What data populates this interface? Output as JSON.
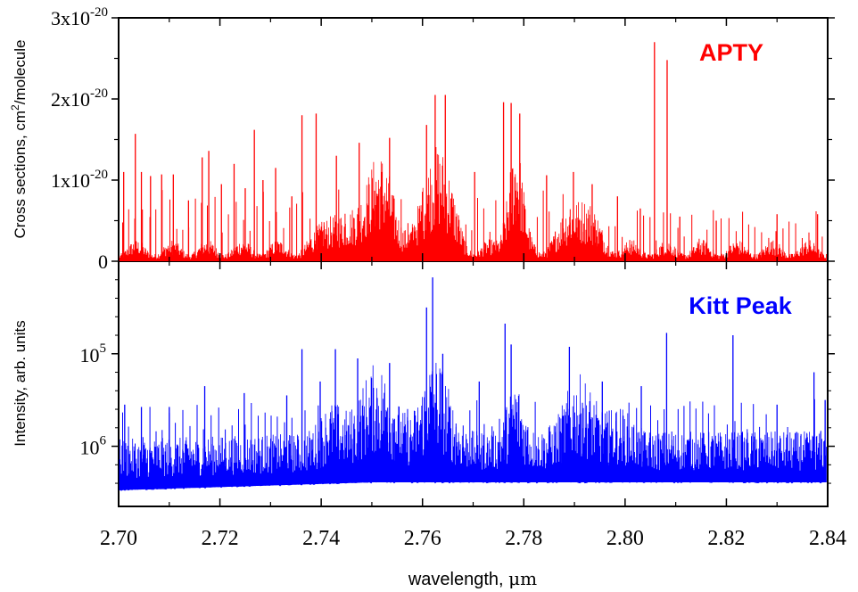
{
  "chart_data": [
    {
      "type": "line",
      "panel": "top",
      "ylabel": "Cross sections, cm",
      "ylabel_sup": "2",
      "ylabel_tail": "/molecule",
      "series": [
        {
          "name": "APTY",
          "color": "#ff0000",
          "baseline_peaks": [
            {
              "x": 2.701,
              "y": 1.1e-20
            },
            {
              "x": 2.7033,
              "y": 1.57e-20
            },
            {
              "x": 2.7045,
              "y": 1.1e-20
            },
            {
              "x": 2.7063,
              "y": 1.05e-20
            },
            {
              "x": 2.7085,
              "y": 1.07e-20
            },
            {
              "x": 2.7108,
              "y": 1.07e-20
            },
            {
              "x": 2.7138,
              "y": 7.5e-21
            },
            {
              "x": 2.7165,
              "y": 1.28e-20
            },
            {
              "x": 2.7178,
              "y": 1.36e-20
            },
            {
              "x": 2.7203,
              "y": 9.5e-21
            },
            {
              "x": 2.7228,
              "y": 1.2e-20
            },
            {
              "x": 2.725,
              "y": 9e-21
            },
            {
              "x": 2.7268,
              "y": 1.62e-20
            },
            {
              "x": 2.7285,
              "y": 1e-20
            },
            {
              "x": 2.731,
              "y": 1.15e-20
            },
            {
              "x": 2.7342,
              "y": 8e-21
            },
            {
              "x": 2.7362,
              "y": 1.8e-20
            },
            {
              "x": 2.739,
              "y": 1.82e-20
            },
            {
              "x": 2.743,
              "y": 1.3e-20
            },
            {
              "x": 2.7475,
              "y": 1.46e-20
            },
            {
              "x": 2.7535,
              "y": 1.52e-20
            },
            {
              "x": 2.7608,
              "y": 1.68e-20
            },
            {
              "x": 2.7625,
              "y": 2.05e-20
            },
            {
              "x": 2.7645,
              "y": 2.05e-20
            },
            {
              "x": 2.7703,
              "y": 1.1e-20
            },
            {
              "x": 2.776,
              "y": 1.96e-20
            },
            {
              "x": 2.7775,
              "y": 1.95e-20
            },
            {
              "x": 2.7792,
              "y": 1.82e-20
            },
            {
              "x": 2.7845,
              "y": 1.06e-20
            },
            {
              "x": 2.7898,
              "y": 1.1e-20
            },
            {
              "x": 2.7935,
              "y": 9.5e-21
            },
            {
              "x": 2.7985,
              "y": 8e-21
            },
            {
              "x": 2.803,
              "y": 6.5e-21
            },
            {
              "x": 2.8058,
              "y": 2.7e-20
            },
            {
              "x": 2.8083,
              "y": 2.48e-20
            },
            {
              "x": 2.8108,
              "y": 5.5e-21
            },
            {
              "x": 2.818,
              "y": 5e-21
            },
            {
              "x": 2.83,
              "y": 5.8e-21
            },
            {
              "x": 2.838,
              "y": 5.8e-21
            }
          ]
        }
      ],
      "yticks": [
        {
          "value": 0,
          "label": "0"
        },
        {
          "value": 1e-20,
          "label": "1x10",
          "exp": "-20"
        },
        {
          "value": 2e-20,
          "label": "2x10",
          "exp": "-20"
        },
        {
          "value": 3e-20,
          "label": "3x10",
          "exp": "-20"
        }
      ],
      "ylim": [
        0,
        3e-20
      ],
      "xlim": [
        2.7,
        2.84
      ]
    },
    {
      "type": "line",
      "panel": "bottom",
      "ylabel": "Intensity, arb. units",
      "series": [
        {
          "name": "Kitt Peak",
          "color": "#0000ff",
          "scale": "log",
          "baseline_peaks": [
            {
              "x": 2.7012,
              "y": 1.9
            },
            {
              "x": 2.7045,
              "y": 1.85
            },
            {
              "x": 2.71,
              "y": 1.85
            },
            {
              "x": 2.717,
              "y": 2.3
            },
            {
              "x": 2.7248,
              "y": 2.15
            },
            {
              "x": 2.7332,
              "y": 2.1
            },
            {
              "x": 2.7362,
              "y": 3.1
            },
            {
              "x": 2.7398,
              "y": 2.4
            },
            {
              "x": 2.7428,
              "y": 3.1
            },
            {
              "x": 2.7472,
              "y": 2.9
            },
            {
              "x": 2.7535,
              "y": 2.8
            },
            {
              "x": 2.7608,
              "y": 4.0
            },
            {
              "x": 2.762,
              "y": 4.65
            },
            {
              "x": 2.764,
              "y": 3.0
            },
            {
              "x": 2.7712,
              "y": 2.4
            },
            {
              "x": 2.7763,
              "y": 3.65
            },
            {
              "x": 2.7775,
              "y": 3.2
            },
            {
              "x": 2.789,
              "y": 3.15
            },
            {
              "x": 2.7955,
              "y": 2.4
            },
            {
              "x": 2.8032,
              "y": 2.3
            },
            {
              "x": 2.8082,
              "y": 3.45
            },
            {
              "x": 2.8213,
              "y": 3.4
            },
            {
              "x": 2.83,
              "y": 1.9
            },
            {
              "x": 2.8373,
              "y": 2.6
            },
            {
              "x": 2.8395,
              "y": 2.0
            }
          ]
        }
      ],
      "yticks": [
        {
          "value": 1,
          "label": "10",
          "exp": "6"
        },
        {
          "value": 3,
          "label": "10",
          "exp": "5"
        }
      ],
      "ylim": [
        -0.3,
        5.0
      ],
      "xlim": [
        2.7,
        2.84
      ]
    }
  ],
  "x_axis": {
    "label": "wavelength, ",
    "label_unit": "μm",
    "ticks": [
      "2.70",
      "2.72",
      "2.74",
      "2.76",
      "2.78",
      "2.80",
      "2.82",
      "2.84"
    ],
    "tick_values": [
      2.7,
      2.72,
      2.74,
      2.76,
      2.78,
      2.8,
      2.82,
      2.84
    ]
  }
}
